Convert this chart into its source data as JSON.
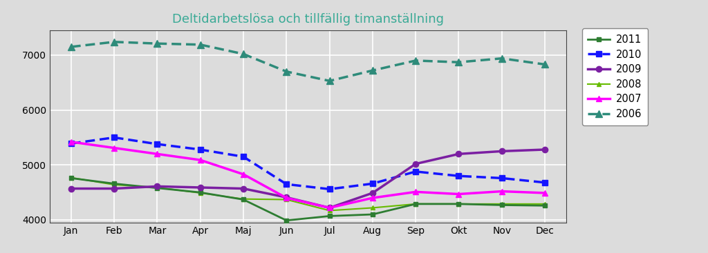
{
  "title": "Deltidarbetslösa och tillfällig timanställning",
  "title_color": "#3aaa96",
  "months": [
    "Jan",
    "Feb",
    "Mar",
    "Apr",
    "Maj",
    "Jun",
    "Jul",
    "Aug",
    "Sep",
    "Okt",
    "Nov",
    "Dec"
  ],
  "series": {
    "2011": {
      "values": [
        4760,
        4660,
        4580,
        4500,
        4370,
        3990,
        4070,
        4100,
        4290,
        4290,
        4270,
        4260
      ],
      "color": "#2E7D32",
      "linestyle": "solid",
      "marker": "s",
      "linewidth": 2.0,
      "markersize": 5,
      "zorder": 4
    },
    "2010": {
      "values": [
        5390,
        5500,
        5380,
        5280,
        5150,
        4650,
        4560,
        4660,
        4880,
        4800,
        4760,
        4680
      ],
      "color": "#1515FF",
      "linestyle": "dotted",
      "marker": "s",
      "linewidth": 2.5,
      "markersize": 6,
      "zorder": 4
    },
    "2009": {
      "values": [
        4570,
        4570,
        4610,
        4590,
        4570,
        4410,
        4220,
        4490,
        5020,
        5200,
        5250,
        5280
      ],
      "color": "#7B1FA2",
      "linestyle": "solid",
      "marker": "o",
      "linewidth": 2.5,
      "markersize": 6,
      "zorder": 4
    },
    "2008": {
      "values": [
        4770,
        4640,
        4590,
        4490,
        4380,
        4370,
        4170,
        4220,
        4290,
        4290,
        4290,
        4290
      ],
      "color": "#66BB00",
      "linestyle": "solid",
      "marker": "^",
      "linewidth": 1.5,
      "markersize": 5,
      "zorder": 2
    },
    "2007": {
      "values": [
        5420,
        5310,
        5200,
        5090,
        4830,
        4400,
        4220,
        4400,
        4510,
        4470,
        4520,
        4490
      ],
      "color": "#FF00FF",
      "linestyle": "solid",
      "marker": "^",
      "linewidth": 2.5,
      "markersize": 6,
      "zorder": 4
    },
    "2006": {
      "values": [
        7150,
        7240,
        7210,
        7190,
        7020,
        6700,
        6530,
        6720,
        6900,
        6870,
        6940,
        6830
      ],
      "color": "#2E8B7A",
      "linestyle": "dotted",
      "marker": "^",
      "linewidth": 2.5,
      "markersize": 7,
      "zorder": 4
    }
  },
  "ylim": [
    3950,
    7450
  ],
  "yticks": [
    4000,
    5000,
    6000,
    7000
  ],
  "legend_order": [
    "2011",
    "2010",
    "2009",
    "2008",
    "2007",
    "2006"
  ],
  "bg_color": "#DCDCDC",
  "plot_bg_color": "#DCDCDC",
  "grid_color": "#FFFFFF"
}
